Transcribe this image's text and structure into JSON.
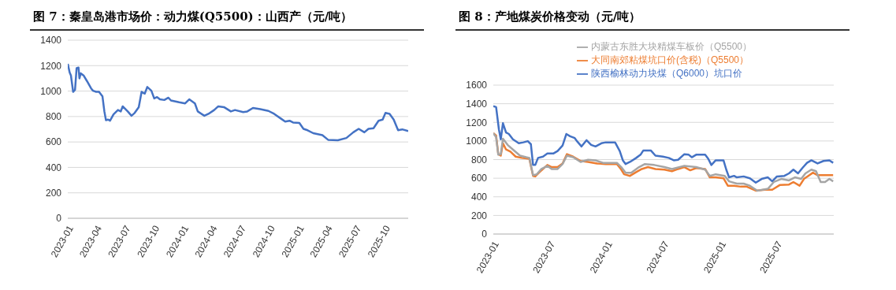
{
  "chart_data": [
    {
      "type": "line",
      "title": "图 7：秦皇岛港市场价：动力煤(Q5500)：山西产（元/吨）",
      "xlim": [
        "2023-01-01",
        "2025-12-15"
      ],
      "xticks": [
        "2023-01",
        "2023-04",
        "2023-07",
        "2023-10",
        "2024-01",
        "2024-04",
        "2024-07",
        "2024-10",
        "2025-01",
        "2025-04",
        "2025-07",
        "2025-10"
      ],
      "ylim": [
        0,
        1400
      ],
      "yticks": [
        0,
        200,
        400,
        600,
        800,
        1000,
        1200,
        1400
      ],
      "grid": "y",
      "legend": false,
      "marker": "none",
      "line_style": "solid",
      "series": [
        {
          "color": "#4472c4",
          "x": [
            "2023-01-01",
            "2023-01-07",
            "2023-01-11",
            "2023-01-18",
            "2023-01-24",
            "2023-01-29",
            "2023-02-04",
            "2023-02-07",
            "2023-02-11",
            "2023-02-20",
            "2023-03-03",
            "2023-03-16",
            "2023-03-22",
            "2023-04-01",
            "2023-04-10",
            "2023-04-21",
            "2023-04-27",
            "2023-05-02",
            "2023-05-09",
            "2023-05-15",
            "2023-05-26",
            "2023-06-09",
            "2023-06-18",
            "2023-06-24",
            "2023-07-10",
            "2023-07-22",
            "2023-08-01",
            "2023-08-14",
            "2023-08-23",
            "2023-09-02",
            "2023-09-10",
            "2023-09-23",
            "2023-10-02",
            "2023-10-11",
            "2023-10-20",
            "2023-11-03",
            "2023-11-16",
            "2023-11-24",
            "2023-12-20",
            "2024-01-08",
            "2024-01-21",
            "2024-02-08",
            "2024-02-17",
            "2024-03-09",
            "2024-03-22",
            "2024-04-09",
            "2024-04-22",
            "2024-05-10",
            "2024-06-01",
            "2024-06-14",
            "2024-07-10",
            "2024-07-23",
            "2024-08-10",
            "2024-09-02",
            "2024-09-28",
            "2024-10-16",
            "2024-11-07",
            "2024-11-20",
            "2024-12-04",
            "2024-12-15",
            "2025-01-04",
            "2025-01-17",
            "2025-01-30",
            "2025-02-17",
            "2025-03-18",
            "2025-04-05",
            "2025-05-06",
            "2025-06-02",
            "2025-06-24",
            "2025-07-11",
            "2025-07-29",
            "2025-08-11",
            "2025-08-27",
            "2025-09-12",
            "2025-09-25",
            "2025-10-04",
            "2025-10-17",
            "2025-10-30",
            "2025-11-13",
            "2025-11-26",
            "2025-12-15"
          ],
          "values": [
            1214,
            1146,
            1123,
            994,
            1010,
            1180,
            1185,
            1100,
            1139,
            1123,
            1078,
            1021,
            1003,
            994,
            994,
            958,
            840,
            771,
            776,
            767,
            817,
            851,
            840,
            880,
            840,
            806,
            828,
            874,
            994,
            980,
            1032,
            1003,
            942,
            953,
            935,
            930,
            948,
            926,
            912,
            903,
            935,
            903,
            840,
            806,
            821,
            851,
            880,
            874,
            840,
            851,
            835,
            840,
            867,
            858,
            844,
            821,
            783,
            760,
            767,
            753,
            749,
            703,
            692,
            669,
            653,
            617,
            613,
            631,
            676,
            703,
            676,
            703,
            708,
            767,
            776,
            828,
            821,
            776,
            692,
            699,
            685
          ]
        }
      ]
    },
    {
      "type": "line",
      "title": "图 8：产地煤炭价格变动（元/吨）",
      "xlim": [
        "2023-01-01",
        "2026-01-01"
      ],
      "xticks": [
        "2023-01",
        "2023-07",
        "2024-01",
        "2024-07",
        "2025-01",
        "2025-07"
      ],
      "ylim": [
        0,
        1600
      ],
      "yticks": [
        0,
        200,
        400,
        600,
        800,
        1000,
        1200,
        1400,
        1600
      ],
      "grid": "y",
      "legend": "top",
      "marker": "none",
      "line_style": "solid",
      "series": [
        {
          "name": "陕西榆林动力块煤（Q6000）坑口价",
          "color": "#4472c4",
          "x": [
            "2023-01-01",
            "2023-01-10",
            "2023-01-19",
            "2023-01-25",
            "2023-02-01",
            "2023-02-11",
            "2023-02-20",
            "2023-03-05",
            "2023-03-24",
            "2023-04-08",
            "2023-04-22",
            "2023-05-02",
            "2023-05-09",
            "2023-05-16",
            "2023-05-25",
            "2023-06-10",
            "2023-06-24",
            "2023-07-13",
            "2023-07-27",
            "2023-08-12",
            "2023-08-24",
            "2023-09-05",
            "2023-09-20",
            "2023-09-29",
            "2023-10-12",
            "2023-10-28",
            "2023-11-12",
            "2023-11-26",
            "2023-12-15",
            "2023-12-29",
            "2024-01-28",
            "2024-02-12",
            "2024-02-22",
            "2024-03-02",
            "2024-03-16",
            "2024-04-05",
            "2024-04-19",
            "2024-04-28",
            "2024-05-22",
            "2024-06-06",
            "2024-06-30",
            "2024-07-19",
            "2024-08-04",
            "2024-08-18",
            "2024-09-07",
            "2024-09-21",
            "2024-10-01",
            "2024-10-15",
            "2024-11-13",
            "2024-11-23",
            "2024-12-03",
            "2024-12-17",
            "2025-01-11",
            "2025-01-20",
            "2025-01-29",
            "2025-02-14",
            "2025-02-23",
            "2025-03-17",
            "2025-04-06",
            "2025-04-25",
            "2025-05-14",
            "2025-06-03",
            "2025-06-17",
            "2025-07-02",
            "2025-07-26",
            "2025-08-10",
            "2025-08-24",
            "2025-09-08",
            "2025-09-22",
            "2025-10-07",
            "2025-10-21",
            "2025-11-10",
            "2025-11-29",
            "2025-12-18",
            "2025-12-30"
          ],
          "values": [
            1374,
            1364,
            1124,
            1018,
            1191,
            1091,
            1075,
            1018,
            975,
            985,
            998,
            965,
            742,
            742,
            818,
            832,
            865,
            865,
            892,
            951,
            1075,
            1051,
            1031,
            991,
            941,
            1008,
            958,
            941,
            975,
            985,
            985,
            892,
            792,
            752,
            775,
            818,
            852,
            898,
            898,
            842,
            832,
            818,
            792,
            798,
            858,
            852,
            825,
            852,
            852,
            808,
            742,
            792,
            792,
            692,
            609,
            625,
            609,
            619,
            599,
            552,
            592,
            609,
            566,
            619,
            625,
            652,
            692,
            652,
            709,
            765,
            792,
            758,
            785,
            792,
            765
          ]
        },
        {
          "name": "大同南郊粘煤坑口价(含税)（Q5500）",
          "color": "#ed7d31",
          "x": [
            "2023-01-01",
            "2023-01-10",
            "2023-01-17",
            "2023-01-25",
            "2023-02-01",
            "2023-02-11",
            "2023-02-25",
            "2023-03-14",
            "2023-04-03",
            "2023-04-27",
            "2023-05-09",
            "2023-05-16",
            "2023-05-30",
            "2023-06-24",
            "2023-07-08",
            "2023-07-27",
            "2023-08-12",
            "2023-08-26",
            "2023-09-15",
            "2023-10-09",
            "2023-11-02",
            "2023-12-01",
            "2023-12-29",
            "2024-02-03",
            "2024-02-17",
            "2024-02-26",
            "2024-03-16",
            "2024-04-05",
            "2024-04-23",
            "2024-05-13",
            "2024-06-06",
            "2024-07-05",
            "2024-07-29",
            "2024-08-18",
            "2024-09-07",
            "2024-09-26",
            "2024-10-15",
            "2024-11-13",
            "2024-11-28",
            "2024-12-17",
            "2025-01-11",
            "2025-01-25",
            "2025-02-14",
            "2025-03-08",
            "2025-03-27",
            "2025-04-25",
            "2025-05-24",
            "2025-06-17",
            "2025-07-11",
            "2025-08-10",
            "2025-08-24",
            "2025-09-13",
            "2025-09-27",
            "2025-10-11",
            "2025-10-26",
            "2025-11-10",
            "2025-11-24",
            "2025-12-30"
          ],
          "values": [
            1084,
            1058,
            858,
            842,
            975,
            908,
            885,
            832,
            818,
            808,
            625,
            619,
            665,
            742,
            719,
            719,
            758,
            858,
            832,
            785,
            775,
            758,
            752,
            752,
            692,
            642,
            625,
            665,
            699,
            719,
            699,
            692,
            675,
            699,
            719,
            685,
            709,
            699,
            609,
            609,
            599,
            519,
            519,
            509,
            509,
            466,
            476,
            476,
            526,
            532,
            559,
            519,
            592,
            625,
            659,
            632,
            632,
            632
          ]
        },
        {
          "name": "内蒙古东胜大块精煤车板价（Q5500）",
          "color": "#a5a5a5",
          "x": [
            "2023-01-01",
            "2023-01-10",
            "2023-01-17",
            "2023-01-25",
            "2023-02-01",
            "2023-02-16",
            "2023-03-05",
            "2023-03-28",
            "2023-04-17",
            "2023-04-27",
            "2023-05-09",
            "2023-05-21",
            "2023-06-05",
            "2023-06-24",
            "2023-07-08",
            "2023-07-27",
            "2023-08-12",
            "2023-08-26",
            "2023-09-15",
            "2023-10-09",
            "2023-11-02",
            "2023-11-26",
            "2023-12-20",
            "2024-02-03",
            "2024-02-17",
            "2024-03-02",
            "2024-03-20",
            "2024-04-14",
            "2024-05-03",
            "2024-06-02",
            "2024-07-05",
            "2024-07-29",
            "2024-09-07",
            "2024-10-15",
            "2024-11-13",
            "2024-11-28",
            "2024-12-17",
            "2025-01-15",
            "2025-01-29",
            "2025-02-23",
            "2025-03-17",
            "2025-04-06",
            "2025-04-30",
            "2025-06-03",
            "2025-06-22",
            "2025-07-16",
            "2025-08-10",
            "2025-08-29",
            "2025-09-18",
            "2025-10-02",
            "2025-10-21",
            "2025-11-05",
            "2025-11-20",
            "2025-12-04",
            "2025-12-18",
            "2025-12-30"
          ],
          "values": [
            1084,
            1041,
            852,
            858,
            1025,
            958,
            908,
            842,
            825,
            818,
            632,
            642,
            699,
            732,
            699,
            699,
            752,
            842,
            825,
            775,
            798,
            792,
            765,
            765,
            719,
            659,
            659,
            719,
            752,
            742,
            719,
            699,
            732,
            719,
            692,
            625,
            642,
            625,
            566,
            542,
            542,
            519,
            466,
            486,
            559,
            592,
            576,
            609,
            592,
            652,
            692,
            675,
            559,
            559,
            592,
            566
          ]
        }
      ]
    }
  ]
}
